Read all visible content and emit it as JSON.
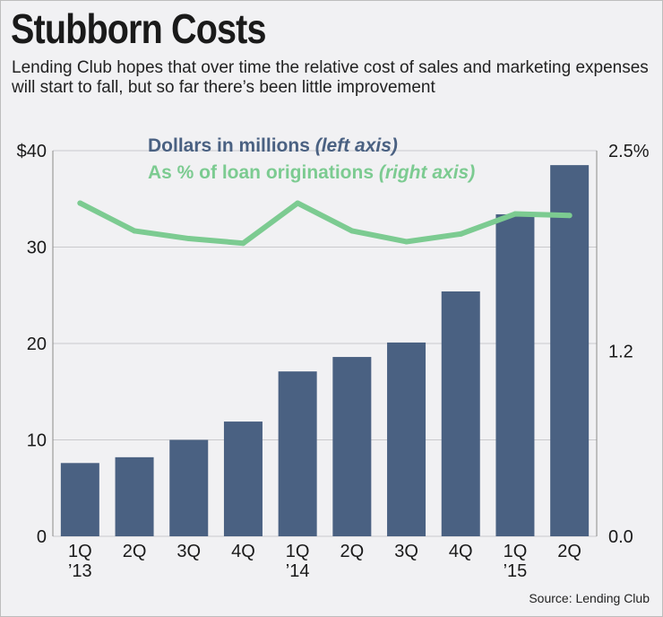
{
  "title": "Stubborn Costs",
  "subtitle": "Lending Club hopes that over time the relative cost of sales and marketing expenses will start to fall, but so far there’s been little improvement",
  "legend": {
    "dollars_label": "Dollars in millions",
    "dollars_paren": "(left axis)",
    "pct_label": "As % of loan originations",
    "pct_paren": "(right axis)"
  },
  "source": "Source: Lending Club",
  "colors": {
    "bars": "#4a6182",
    "line": "#7ccb91",
    "background": "#f1f1f3"
  },
  "chart_data": {
    "type": "bar+line",
    "categories": [
      "1Q ’13",
      "2Q",
      "3Q",
      "4Q",
      "1Q ’14",
      "2Q",
      "3Q",
      "4Q",
      "1Q ’15",
      "2Q"
    ],
    "x_tick_labels": [
      [
        "1Q",
        "’13"
      ],
      [
        "2Q"
      ],
      [
        "3Q"
      ],
      [
        "4Q"
      ],
      [
        "1Q",
        "’14"
      ],
      [
        "2Q"
      ],
      [
        "3Q"
      ],
      [
        "4Q"
      ],
      [
        "1Q",
        "’15"
      ],
      [
        "2Q"
      ]
    ],
    "series": [
      {
        "name": "Dollars in millions (left axis)",
        "type": "bar",
        "axis": "left",
        "values": [
          7.6,
          8.2,
          10.0,
          11.9,
          17.1,
          18.6,
          20.1,
          25.4,
          33.4,
          38.5
        ]
      },
      {
        "name": "As % of loan originations (right axis)",
        "type": "line",
        "axis": "right",
        "values": [
          2.16,
          1.98,
          1.93,
          1.9,
          2.16,
          1.98,
          1.91,
          1.96,
          2.09,
          2.08
        ]
      }
    ],
    "left_axis": {
      "ylim": [
        0,
        40
      ],
      "ticks": [
        0,
        10,
        20,
        30,
        40
      ],
      "tick_labels": [
        "0",
        "10",
        "20",
        "30",
        "$40"
      ]
    },
    "right_axis": {
      "ylim": [
        0,
        2.5
      ],
      "ticks": [
        0,
        1.2,
        2.5
      ],
      "tick_labels": [
        "0.0",
        "1.2",
        "2.5%"
      ]
    },
    "grid": true
  }
}
